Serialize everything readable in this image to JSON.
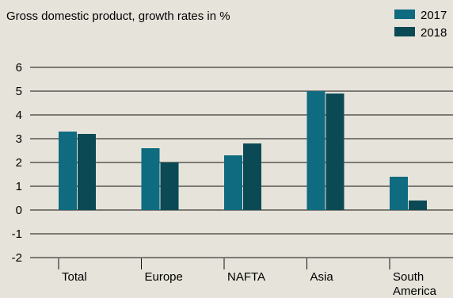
{
  "chart_data": {
    "type": "bar",
    "title": "Gross domestic product, growth rates in %",
    "xlabel": "",
    "ylabel": "",
    "categories": [
      "Total",
      "Europe",
      "NAFTA",
      "Asia",
      "South America"
    ],
    "category_lines": [
      [
        "Total"
      ],
      [
        "Europe"
      ],
      [
        "NAFTA"
      ],
      [
        "Asia"
      ],
      [
        "South",
        "America"
      ]
    ],
    "series": [
      {
        "name": "2017",
        "color": "#0f6b7f",
        "values": [
          3.3,
          2.6,
          2.3,
          5.0,
          1.4
        ]
      },
      {
        "name": "2018",
        "color": "#0b4a55",
        "values": [
          3.2,
          2.0,
          2.8,
          4.9,
          0.4
        ]
      }
    ],
    "ylim": [
      -2,
      6
    ],
    "yticks": [
      "-2",
      "-1",
      "0",
      "1",
      "2",
      "3",
      "4",
      "5",
      "6"
    ],
    "grid": true,
    "legend_position": "top-right",
    "colors": {
      "background": "#e6e3da",
      "grid": "#111111"
    }
  }
}
